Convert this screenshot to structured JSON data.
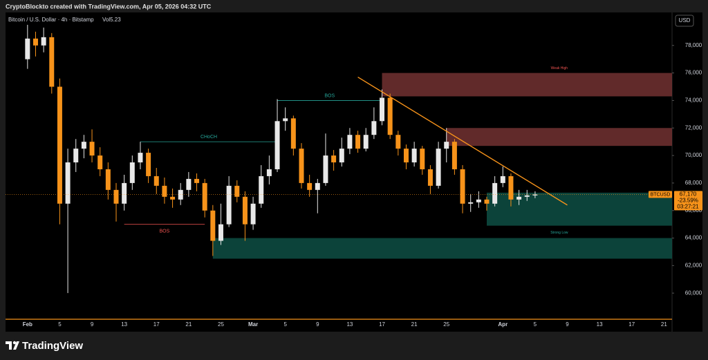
{
  "header": {
    "credit": "CryptoBlockto created with TradingView.com, Apr 05, 2026 04:32 UTC"
  },
  "footer": {
    "brand": "TradingView"
  },
  "chart_data": {
    "type": "candlestick",
    "symbol_line": "Bitcoin / U.S. Dollar · 4h · Bitstamp",
    "indicator": "Vol5.23",
    "currency": "USD",
    "symbol": "BTCUSD",
    "last_price": {
      "value": 67170,
      "label": "67,170"
    },
    "change": {
      "value": -23.59,
      "label": "-23.59%"
    },
    "countdown": "03:27:21",
    "up_color": "#e8e8e8",
    "down_color": "#f7931a",
    "grid": false,
    "ylim": [
      58100,
      80400
    ],
    "yticks": [
      {
        "value": 60000,
        "label": "60,000"
      },
      {
        "value": 62000,
        "label": "62,000"
      },
      {
        "value": 64000,
        "label": "64,000"
      },
      {
        "value": 66000,
        "label": "66,000"
      },
      {
        "value": 68000,
        "label": "68,000"
      },
      {
        "value": 70000,
        "label": "70,000"
      },
      {
        "value": 72000,
        "label": "72,000"
      },
      {
        "value": 74000,
        "label": "74,000"
      },
      {
        "value": 76000,
        "label": "76,000"
      },
      {
        "value": 78000,
        "label": "78,000"
      }
    ],
    "categories": [
      "Feb",
      null,
      null,
      null,
      "5",
      null,
      null,
      null,
      "9",
      null,
      null,
      null,
      "13",
      null,
      null,
      null,
      "17",
      null,
      null,
      null,
      "21",
      null,
      null,
      null,
      "25",
      null,
      null,
      null,
      "Mar",
      null,
      null,
      null,
      "5",
      null,
      null,
      null,
      "9",
      null,
      null,
      null,
      "13",
      null,
      null,
      null,
      "17",
      null,
      null,
      null,
      "21",
      null,
      null,
      null,
      "25",
      null,
      null,
      null,
      null,
      null,
      null,
      "Apr",
      null,
      null,
      null,
      "5",
      null,
      null,
      null,
      "9",
      null,
      null,
      null,
      "13",
      null,
      null,
      null,
      "17",
      null,
      null,
      null,
      "21",
      null
    ],
    "open": [
      77000,
      78500,
      78000,
      78600,
      75000,
      66500,
      69500,
      70500,
      71000,
      70000,
      69000,
      67500,
      66500,
      68000,
      69500,
      70200,
      68500,
      67800,
      67000,
      66800,
      67500,
      68300,
      68000,
      66000,
      63800,
      65000,
      67800,
      67000,
      65000,
      66500,
      68500,
      69000,
      72500,
      72700,
      70500,
      68000,
      67500,
      68000,
      70000,
      69500,
      70500,
      71500,
      70500,
      71500,
      72500,
      74200,
      71500,
      70500,
      69500,
      70500,
      69000,
      67800,
      70500,
      71000,
      69000,
      66500,
      66600,
      66800,
      66500,
      68000,
      68500,
      66800,
      67000,
      67100,
      null,
      null,
      null,
      null,
      null,
      null,
      null,
      null,
      null,
      null,
      null,
      null,
      null,
      null,
      null,
      null,
      null
    ],
    "high": [
      79500,
      79000,
      79300,
      78900,
      75600,
      70500,
      71200,
      71500,
      71900,
      70600,
      69500,
      68000,
      68600,
      70000,
      71000,
      70500,
      69100,
      68400,
      67600,
      68000,
      68800,
      68700,
      68300,
      66400,
      66500,
      68500,
      68200,
      67400,
      67000,
      69300,
      70000,
      74100,
      73500,
      72900,
      70900,
      68600,
      68300,
      71600,
      70400,
      71300,
      72000,
      71800,
      72000,
      73500,
      74800,
      74500,
      71800,
      70800,
      71000,
      70700,
      69300,
      71000,
      72000,
      71200,
      69300,
      67200,
      67400,
      67000,
      68500,
      69200,
      68700,
      67500,
      67500,
      67400,
      null,
      null,
      null,
      null,
      null,
      null,
      null,
      null,
      null,
      null,
      null,
      null,
      null,
      null,
      null,
      null,
      null
    ],
    "low": [
      76300,
      77200,
      77500,
      74500,
      65000,
      60000,
      68800,
      69800,
      69500,
      68500,
      66800,
      65200,
      66000,
      67500,
      69000,
      68000,
      67200,
      66500,
      66200,
      66400,
      67000,
      67400,
      65500,
      62700,
      63500,
      64800,
      66600,
      63800,
      64600,
      66200,
      67900,
      68800,
      71800,
      70000,
      67600,
      67000,
      65800,
      67800,
      68900,
      69200,
      70100,
      70200,
      70300,
      71200,
      72200,
      71200,
      70000,
      69000,
      69200,
      68600,
      67200,
      67600,
      69500,
      68600,
      65800,
      65900,
      66200,
      66000,
      66300,
      67700,
      66300,
      66400,
      66700,
      66900,
      null,
      null,
      null,
      null,
      null,
      null,
      null,
      null,
      null,
      null,
      null,
      null,
      null,
      null,
      null,
      null,
      null
    ],
    "close": [
      78500,
      78000,
      78600,
      75000,
      66500,
      69500,
      70500,
      71000,
      70000,
      69000,
      67500,
      66500,
      68000,
      69500,
      70200,
      68500,
      67800,
      67000,
      66800,
      67500,
      68300,
      68000,
      66000,
      63800,
      65000,
      67800,
      67000,
      65000,
      66500,
      68500,
      69000,
      72500,
      72700,
      70500,
      68000,
      67500,
      68000,
      70000,
      69500,
      70500,
      71500,
      70500,
      71500,
      72500,
      74200,
      71500,
      70500,
      69500,
      70500,
      69000,
      67800,
      70500,
      71000,
      69000,
      66500,
      66600,
      66800,
      66500,
      68000,
      68500,
      66800,
      67000,
      67100,
      67170,
      null,
      null,
      null,
      null,
      null,
      null,
      null,
      null,
      null,
      null,
      null,
      null,
      null,
      null,
      null,
      null,
      null
    ],
    "zones": [
      {
        "low": 74300,
        "high": 76000,
        "start": 44,
        "color": "#6b2f2f"
      },
      {
        "low": 70700,
        "high": 72000,
        "start": 52,
        "color": "#6b2f2f"
      },
      {
        "low": 64900,
        "high": 67300,
        "start": 57,
        "color": "#0d4a40"
      },
      {
        "low": 62500,
        "high": 64000,
        "start": 23,
        "color": "#0d4a40"
      }
    ],
    "trendline": {
      "start": 41,
      "start_price": 75700,
      "end": 67,
      "end_price": 66400,
      "color": "#f7931a"
    },
    "structures": [
      {
        "text": "BOS",
        "price": 74000,
        "start": 31,
        "end": 44,
        "color": "#26a69a"
      },
      {
        "text": "CHoCH",
        "price": 71000,
        "start": 14,
        "end": 31,
        "color": "#26a69a"
      },
      {
        "text": "BOS",
        "price": 65000,
        "start": 12,
        "end": 22,
        "color": "#ef5350"
      }
    ],
    "annotations": [
      {
        "text": "Weak High",
        "index": 66,
        "price": 76350,
        "color": "#ef5350"
      },
      {
        "text": "Strong Low",
        "index": 66,
        "price": 64400,
        "color": "#26a69a"
      }
    ]
  }
}
